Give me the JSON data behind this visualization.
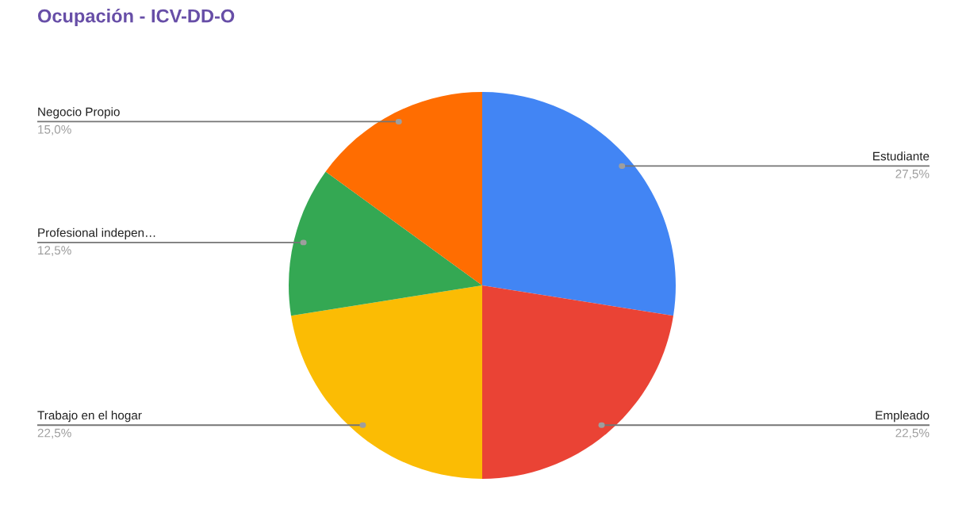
{
  "chart_data": {
    "type": "pie",
    "title": "Ocupación - ICV-DD-O",
    "categories": [
      "Estudiante",
      "Empleado",
      "Trabajo en el hogar",
      "Profesional indepen…",
      "Negocio Propio"
    ],
    "values": [
      27.5,
      22.5,
      22.5,
      12.5,
      15.0
    ],
    "colors": [
      "#4285f4",
      "#ea4335",
      "#fbbc04",
      "#34a853",
      "#ff6d01"
    ],
    "value_labels": [
      "27,5%",
      "22,5%",
      "22,5%",
      "12,5%",
      "15,0%"
    ]
  }
}
